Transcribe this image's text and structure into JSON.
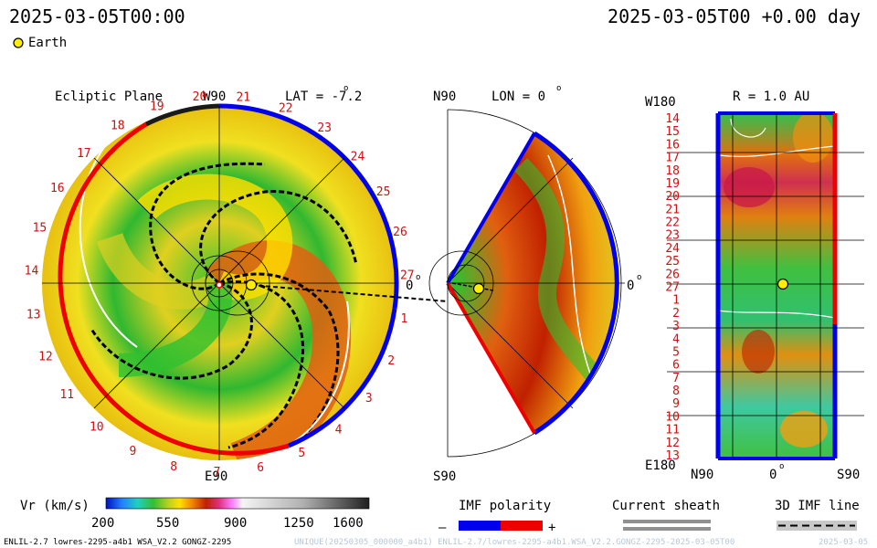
{
  "header": {
    "datetime_left": "2025-03-05T00:00",
    "datetime_right": "2025-03-05T00 +0.00 day",
    "earth_legend": "Earth"
  },
  "panels": {
    "ecliptic": {
      "title": "Ecliptic Plane",
      "top_label": "W90",
      "lat_label": "LAT = -7.2",
      "zero_label": "0",
      "bottom_label": "E90",
      "carrington_labels": [
        "20",
        "21",
        "22",
        "23",
        "24",
        "25",
        "26",
        "27",
        "1",
        "2",
        "3",
        "4",
        "5",
        "6",
        "7",
        "8",
        "9",
        "10",
        "11",
        "12",
        "13",
        "14",
        "15",
        "16",
        "17",
        "18",
        "19"
      ]
    },
    "meridional": {
      "top_label": "N90",
      "lon_label": "LON = 0",
      "zero_label": "0",
      "bottom_label": "S90"
    },
    "synoptic": {
      "top_left_label": "W180",
      "r_label": "R = 1.0 AU",
      "bottom_left_label": "E180",
      "xtick_labels": [
        "N90",
        "0",
        "S90"
      ],
      "row_labels": [
        "14",
        "15",
        "16",
        "17",
        "18",
        "19",
        "20",
        "21",
        "22",
        "23",
        "24",
        "25",
        "26",
        "27",
        "1",
        "2",
        "3",
        "4",
        "5",
        "6",
        "7",
        "8",
        "9",
        "10",
        "11",
        "12",
        "13"
      ]
    }
  },
  "colorbar": {
    "label": "Vr (km/s)",
    "ticks": [
      "200",
      "550",
      "900",
      "1250",
      "1600"
    ]
  },
  "legend": {
    "imf_title": "IMF polarity",
    "minus": "–",
    "plus": "+",
    "sheath_title": "Current sheath",
    "line_title": "3D IMF line"
  },
  "footer": {
    "model_info": "ENLIL-2.7 lowres-2295-a4b1 WSA_V2.2 GONGZ-2295",
    "run_id": "UNIQUE(20250305_000000_a4b1) ENLIL-2.7/lowres-2295-a4b1.WSA_V2.2.GONGZ-2295-2025-03-05T00",
    "right_text": "2025-03-05"
  },
  "chart_data": {
    "type": "heatmap",
    "quantity": "Vr (km/s)",
    "colorbar_range": [
      200,
      1600
    ],
    "colors": {
      "imf_negative": "#0000ee",
      "imf_positive": "#ee0000",
      "earth": "#ffee00"
    }
  }
}
